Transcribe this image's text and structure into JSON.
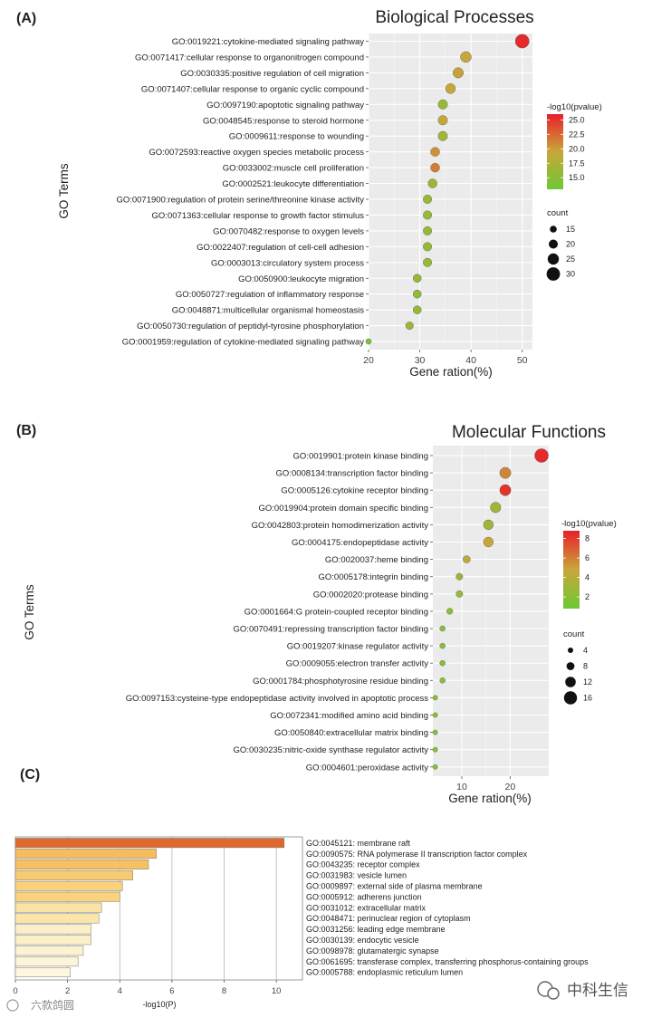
{
  "panel_labels": {
    "a": "(A)",
    "b": "(B)",
    "c": "(C)"
  },
  "watermark": {
    "left": "六款鸽圆",
    "right": "中科生信"
  },
  "chart_data": [
    {
      "type": "scatter",
      "title": "Biological Processes",
      "xlabel": "Gene ration(%)",
      "ylabel": "GO Terms",
      "xlim": [
        20,
        52
      ],
      "xticks": [
        20,
        30,
        40,
        50
      ],
      "grid": true,
      "legend_placement": "right",
      "color_legend": {
        "title": "-log10(pvalue)",
        "ticks": [
          "25.0",
          "22.5",
          "20.0",
          "17.5",
          "15.0"
        ],
        "range": [
          13.0,
          26.0
        ],
        "colors": [
          "#e8202a",
          "#c9a63a",
          "#6cc935"
        ]
      },
      "size_legend": {
        "title": "count",
        "values": [
          15,
          20,
          25,
          30
        ]
      },
      "terms": [
        "GO:0019221:cytokine-mediated signaling pathway",
        "GO:0071417:cellular response to organonitrogen compound",
        "GO:0030335:positive regulation of cell migration",
        "GO:0071407:cellular response to organic cyclic compound",
        "GO:0097190:apoptotic signaling pathway",
        "GO:0048545:response to steroid hormone",
        "GO:0009611:response to wounding",
        "GO:0072593:reactive oxygen species metabolic process",
        "GO:0033002:muscle cell proliferation",
        "GO:0002521:leukocyte differentiation",
        "GO:0071900:regulation of protein serine/threonine kinase activity",
        "GO:0071363:cellular response to growth factor stimulus",
        "GO:0070482:response to oxygen levels",
        "GO:0022407:regulation of cell-cell adhesion",
        "GO:0003013:circulatory system process",
        "GO:0050900:leukocyte migration",
        "GO:0050727:regulation of inflammatory response",
        "GO:0048871:multicellular organismal homeostasis",
        "GO:0050730:regulation of peptidyl-tyrosine phosphorylation",
        "GO:0001959:regulation of cytokine-mediated signaling pathway"
      ],
      "gene_ratio": [
        50,
        39,
        37.5,
        36,
        34.5,
        34.5,
        34.5,
        33,
        33,
        32.5,
        31.5,
        31.5,
        31.5,
        31.5,
        31.5,
        29.5,
        29.5,
        29.5,
        28,
        20
      ],
      "neg_log10_p": [
        25.5,
        19.5,
        19.8,
        19.3,
        16.2,
        19.2,
        16.5,
        20.5,
        21.5,
        16.5,
        16.2,
        16.0,
        16.0,
        16.0,
        16.0,
        15.8,
        15.5,
        15.6,
        16.3,
        13.8
      ],
      "count": [
        31,
        24,
        23,
        22,
        21,
        21,
        21,
        20,
        20,
        20,
        19,
        19,
        19,
        19,
        19,
        18,
        18,
        18,
        17,
        12
      ]
    },
    {
      "type": "scatter",
      "title": "Molecular Functions",
      "xlabel": "Gene ration(%)",
      "ylabel": "GO Terms",
      "xlim": [
        4,
        28
      ],
      "xticks": [
        10,
        20
      ],
      "grid": true,
      "legend_placement": "right",
      "color_legend": {
        "title": "-log10(pvalue)",
        "ticks": [
          "8",
          "6",
          "4",
          "2"
        ],
        "range": [
          0.8,
          8.8
        ],
        "colors": [
          "#e8202a",
          "#c9a63a",
          "#6cc935"
        ]
      },
      "size_legend": {
        "title": "count",
        "values": [
          4,
          8,
          12,
          16
        ]
      },
      "terms": [
        "GO:0019901:protein kinase binding",
        "GO:0008134:transcription factor binding",
        "GO:0005126:cytokine receptor binding",
        "GO:0019904:protein domain specific binding",
        "GO:0042803:protein homodimerization activity",
        "GO:0004175:endopeptidase activity",
        "GO:0020037:heme binding",
        "GO:0005178:integrin binding",
        "GO:0002020:protease binding",
        "GO:0001664:G protein-coupled receptor binding",
        "GO:0070491:repressing transcription factor binding",
        "GO:0019207:kinase regulator activity",
        "GO:0009055:electron transfer activity",
        "GO:0001784:phosphotyrosine residue binding",
        "GO:0097153:cysteine-type endopeptidase activity involved in apoptotic process",
        "GO:0072341:modified amino acid binding",
        "GO:0050840:extracellular matrix binding",
        "GO:0030235:nitric-oxide synthase regulator activity",
        "GO:0004601:peroxidase activity"
      ],
      "gene_ratio": [
        26.5,
        19,
        19,
        17,
        15.5,
        15.5,
        11,
        9.5,
        9.5,
        7.5,
        6,
        6,
        6,
        6,
        4.5,
        4.5,
        4.5,
        4.5,
        4.5
      ],
      "neg_log10_p": [
        8.5,
        5.8,
        8.2,
        3.0,
        3.0,
        4.8,
        4.2,
        2.8,
        2.5,
        2.0,
        2.0,
        2.0,
        2.0,
        2.0,
        2.0,
        2.0,
        2.0,
        2.0,
        2.0
      ],
      "count": [
        17,
        13,
        13,
        12,
        11,
        11,
        7,
        6,
        6,
        5,
        4,
        4,
        4,
        4,
        3,
        3,
        3,
        3,
        3
      ]
    },
    {
      "type": "bar",
      "orientation": "horizontal",
      "xlabel": "-log10(P)",
      "xlim": [
        0,
        11
      ],
      "xticks": [
        0,
        2,
        4,
        6,
        8,
        10
      ],
      "grid": true,
      "categories": [
        "GO:0045121: membrane raft",
        "GO:0090575: RNA polymerase II transcription factor complex",
        "GO:0043235: receptor complex",
        "GO:0031983: vesicle lumen",
        "GO:0009897: external side of plasma membrane",
        "GO:0005912: adherens junction",
        "GO:0031012: extracellular matrix",
        "GO:0048471: perinuclear region of cytoplasm",
        "GO:0031256: leading edge membrane",
        "GO:0030139: endocytic vesicle",
        "GO:0098978: glutamatergic synapse",
        "GO:0061695: transferase complex, transferring phosphorus-containing groups",
        "GO:0005788: endoplasmic reticulum lumen"
      ],
      "values": [
        10.3,
        5.4,
        5.1,
        4.5,
        4.1,
        4.0,
        3.3,
        3.2,
        2.9,
        2.9,
        2.6,
        2.4,
        2.1
      ],
      "colors": [
        "#dd6a2c",
        "#f6bd5e",
        "#f7c163",
        "#f8cb70",
        "#f9d27b",
        "#f9d27b",
        "#fbe3a3",
        "#fbe6aa",
        "#fcf0c8",
        "#fcf0c8",
        "#fdf3d2",
        "#fdf5d9",
        "#fdf7df"
      ]
    }
  ]
}
